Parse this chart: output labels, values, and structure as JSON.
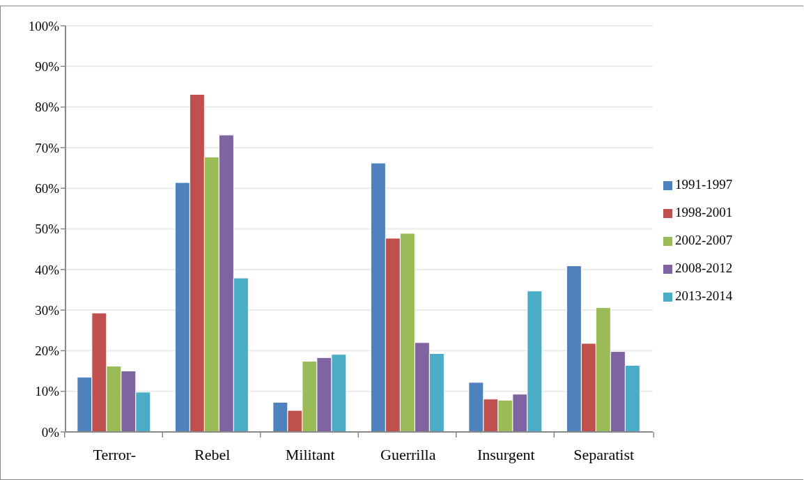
{
  "chart_data": {
    "type": "bar",
    "categories": [
      "Terror-",
      "Rebel",
      "Militant",
      "Guerrilla",
      "Insurgent",
      "Separatist"
    ],
    "series": [
      {
        "name": "1991-1997",
        "color": "#4f81bd",
        "values": [
          13.5,
          61.4,
          7.3,
          66.2,
          12.2,
          40.9
        ]
      },
      {
        "name": "1998-2001",
        "color": "#c0504d",
        "values": [
          29.3,
          83.1,
          5.3,
          47.7,
          8.1,
          21.8
        ]
      },
      {
        "name": "2002-2007",
        "color": "#9bbb59",
        "values": [
          16.2,
          67.7,
          17.4,
          48.9,
          7.8,
          30.6
        ]
      },
      {
        "name": "2008-2012",
        "color": "#8064a2",
        "values": [
          15.0,
          73.1,
          18.3,
          22.0,
          9.3,
          19.8
        ]
      },
      {
        "name": "2013-2014",
        "color": "#4bacc6",
        "values": [
          9.8,
          37.9,
          19.1,
          19.3,
          34.7,
          16.4
        ]
      }
    ],
    "ylim": [
      0,
      100
    ],
    "yticks": [
      {
        "value": 0,
        "label": "0%"
      },
      {
        "value": 10,
        "label": "10%"
      },
      {
        "value": 20,
        "label": "20%"
      },
      {
        "value": 30,
        "label": "30%"
      },
      {
        "value": 40,
        "label": "40%"
      },
      {
        "value": 50,
        "label": "50%"
      },
      {
        "value": 60,
        "label": "60%"
      },
      {
        "value": 70,
        "label": "70%"
      },
      {
        "value": 80,
        "label": "80%"
      },
      {
        "value": 90,
        "label": "90%"
      },
      {
        "value": 100,
        "label": "100%"
      }
    ],
    "grid": "y",
    "legend": "right"
  }
}
